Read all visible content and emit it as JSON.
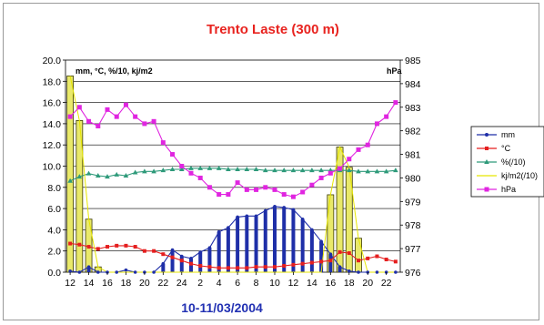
{
  "chart_data": {
    "type": "line",
    "title": "Trento Laste (300 m)",
    "xlabel": "10-11/03/2004",
    "left_axis_label": "mm, °C, %/10, kj/m2",
    "right_axis_label": "hPa",
    "left_ylim": [
      0,
      20
    ],
    "right_ylim": [
      976,
      985
    ],
    "left_ticks": [
      "0.0",
      "2.0",
      "4.0",
      "6.0",
      "8.0",
      "10.0",
      "12.0",
      "14.0",
      "16.0",
      "18.0",
      "20.0"
    ],
    "right_ticks": [
      "976",
      "977",
      "978",
      "979",
      "980",
      "981",
      "982",
      "983",
      "984",
      "985"
    ],
    "x_tick_labels": [
      "12",
      "14",
      "16",
      "18",
      "20",
      "22",
      "24",
      "2",
      "4",
      "6",
      "8",
      "10",
      "12",
      "14",
      "16",
      "18",
      "20",
      "22"
    ],
    "x_hours": [
      12,
      13,
      14,
      15,
      16,
      17,
      18,
      19,
      20,
      21,
      22,
      23,
      24,
      25,
      26,
      27,
      28,
      29,
      30,
      31,
      32,
      33,
      34,
      35,
      36,
      37,
      38,
      39,
      40,
      41,
      42,
      43,
      44,
      45,
      46,
      47
    ],
    "grid": true,
    "legend_position": "right",
    "series": [
      {
        "name": "mm",
        "color": "#1f2fa8",
        "axis": "left",
        "render": "line+stick",
        "values": [
          0.1,
          0,
          0.5,
          0,
          0,
          0,
          0.2,
          0,
          0,
          0,
          0.8,
          2.1,
          1.5,
          1.3,
          1.9,
          2.3,
          3.8,
          4.2,
          5.2,
          5.3,
          5.3,
          5.8,
          6.2,
          6.1,
          5.9,
          5.0,
          4.0,
          2.9,
          1.7,
          0.5,
          0.1,
          0,
          0,
          0,
          0,
          0
        ]
      },
      {
        "name": "°C",
        "color": "#e51f1f",
        "axis": "left",
        "values": [
          2.7,
          2.6,
          2.4,
          2.2,
          2.4,
          2.5,
          2.5,
          2.4,
          2.0,
          2.0,
          1.7,
          1.4,
          1.1,
          0.8,
          0.6,
          0.5,
          0.4,
          0.4,
          0.4,
          0.4,
          0.5,
          0.5,
          0.5,
          0.6,
          0.7,
          0.8,
          0.9,
          1.0,
          1.1,
          1.9,
          1.8,
          1.1,
          1.3,
          1.5,
          1.2,
          1.0
        ]
      },
      {
        "name": "%(/10)",
        "color": "#2e9a7a",
        "axis": "left",
        "values": [
          8.6,
          9.0,
          9.3,
          9.1,
          9.0,
          9.2,
          9.1,
          9.4,
          9.5,
          9.5,
          9.6,
          9.7,
          9.7,
          9.8,
          9.8,
          9.8,
          9.8,
          9.7,
          9.7,
          9.7,
          9.7,
          9.6,
          9.6,
          9.6,
          9.6,
          9.6,
          9.6,
          9.6,
          9.6,
          9.6,
          9.6,
          9.5,
          9.5,
          9.5,
          9.5,
          9.6
        ]
      },
      {
        "name": "kj/m2(/10)",
        "color": "#e6e600",
        "axis": "left",
        "render": "line+bar",
        "values": [
          18.5,
          14.3,
          5.0,
          0.5,
          0,
          0,
          0,
          0,
          0,
          0,
          0,
          0,
          0,
          0,
          0,
          0,
          0,
          0,
          0,
          0,
          0,
          0,
          0,
          0,
          0,
          0,
          0,
          0,
          7.3,
          11.8,
          9.9,
          3.2,
          0,
          0,
          0,
          0
        ]
      },
      {
        "name": "hPa",
        "color": "#e025e0",
        "axis": "right",
        "values": [
          982.6,
          983.0,
          982.4,
          982.2,
          982.9,
          982.6,
          983.1,
          982.6,
          982.3,
          982.4,
          981.5,
          981.0,
          980.5,
          980.2,
          980.0,
          979.6,
          979.3,
          979.3,
          979.8,
          979.5,
          979.5,
          979.6,
          979.5,
          979.3,
          979.2,
          979.4,
          979.7,
          980.0,
          980.2,
          980.4,
          980.8,
          981.2,
          981.4,
          982.3,
          982.6,
          983.2
        ]
      }
    ]
  }
}
